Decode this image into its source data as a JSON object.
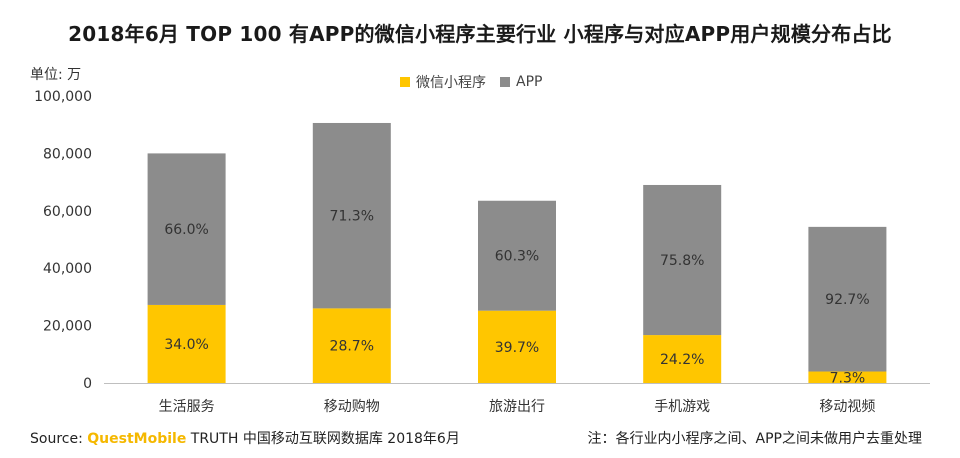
{
  "title": "2018年6月 TOP 100 有APP的微信小程序主要行业 小程序与对应APP用户规模分布占比",
  "unit_label": "单位: 万",
  "legend": [
    {
      "label": "微信小程序",
      "color": "#ffc600"
    },
    {
      "label": "APP",
      "color": "#8c8c8c"
    }
  ],
  "chart_data": {
    "type": "bar",
    "stacked": true,
    "categories": [
      "生活服务",
      "移动购物",
      "旅游出行",
      "手机游戏",
      "移动视频"
    ],
    "series": [
      {
        "name": "微信小程序",
        "color": "#ffc600",
        "values": [
          27200,
          26000,
          25200,
          16700,
          4000
        ],
        "labels": [
          "34.0%",
          "28.7%",
          "39.7%",
          "24.2%",
          "7.3%"
        ]
      },
      {
        "name": "APP",
        "color": "#8c8c8c",
        "values": [
          52800,
          64600,
          38300,
          52300,
          50400
        ],
        "labels": [
          "66.0%",
          "71.3%",
          "60.3%",
          "75.8%",
          "92.7%"
        ]
      }
    ],
    "yticks": [
      0,
      20000,
      40000,
      60000,
      80000,
      100000
    ],
    "ytick_labels": [
      "0",
      "20,000",
      "40,000",
      "60,000",
      "80,000",
      "100,000"
    ],
    "ylim": [
      0,
      100000
    ],
    "ylabel": "单位: 万",
    "xlabel": "",
    "grid": false
  },
  "footer": {
    "source_prefix": "Source: ",
    "brand": "QuestMobile",
    "source_rest": " TRUTH 中国移动互联网数据库 2018年6月",
    "note": "注：各行业内小程序之间、APP之间未做用户去重处理"
  }
}
